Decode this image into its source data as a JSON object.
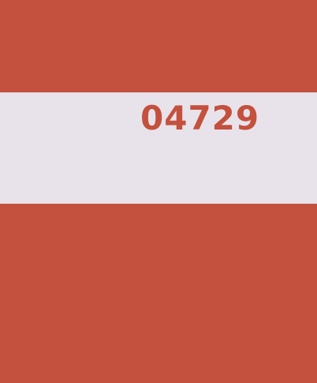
{
  "code_text": "04729",
  "colors": {
    "background_red": "#C4503E",
    "band_light": "#E8E3EA",
    "code_text": "#C4503E"
  }
}
